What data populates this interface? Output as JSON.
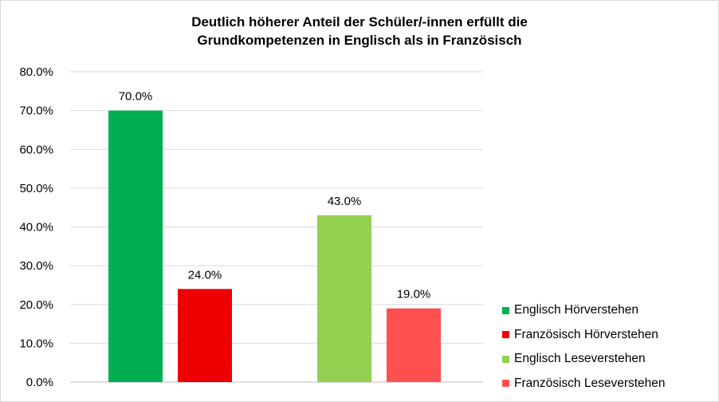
{
  "chart_data": {
    "type": "bar",
    "title": [
      "Deutlich höherer Anteil der Schüler/-innen erfüllt die",
      "Grundkompetenzen in Englisch als in Französisch"
    ],
    "ylim": [
      0,
      80
    ],
    "y_ticks": [
      "0.0%",
      "10.0%",
      "20.0%",
      "30.0%",
      "40.0%",
      "50.0%",
      "60.0%",
      "70.0%",
      "80.0%"
    ],
    "grid": true,
    "legend_position": "right-bottom",
    "series": [
      {
        "name": "Englisch Hörverstehen",
        "value": 70.0,
        "label": "70.0%",
        "color": "#00b050"
      },
      {
        "name": "Französisch Hörverstehen",
        "value": 24.0,
        "label": "24.0%",
        "color": "#ee0000"
      },
      {
        "name": "Englisch Leseverstehen",
        "value": 43.0,
        "label": "43.0%",
        "color": "#92d050"
      },
      {
        "name": "Französisch Leseverstehen",
        "value": 19.0,
        "label": "19.0%",
        "color": "#ff5050"
      }
    ]
  }
}
